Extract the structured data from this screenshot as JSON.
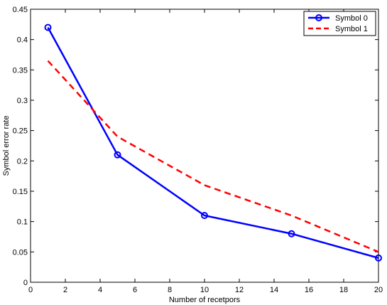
{
  "chart_data": {
    "type": "line",
    "xlabel": "Number of recetpors",
    "ylabel": "Symbol error rate",
    "xlim": [
      0,
      20
    ],
    "ylim": [
      0,
      0.45
    ],
    "xticks": [
      0,
      2,
      4,
      6,
      8,
      10,
      12,
      14,
      16,
      18,
      20
    ],
    "yticks": [
      0,
      0.05,
      0.1,
      0.15,
      0.2,
      0.25,
      0.3,
      0.35,
      0.4,
      0.45
    ],
    "xtick_labels": [
      "0",
      "2",
      "4",
      "6",
      "8",
      "10",
      "12",
      "14",
      "16",
      "18",
      "20"
    ],
    "ytick_labels": [
      "0",
      "0.05",
      "0.1",
      "0.15",
      "0.2",
      "0.25",
      "0.3",
      "0.35",
      "0.4",
      "0.45"
    ],
    "grid": false,
    "legend_position": "top-right",
    "series": [
      {
        "name": "Symbol 0",
        "x": [
          1,
          5,
          10,
          15,
          20
        ],
        "y": [
          0.42,
          0.21,
          0.11,
          0.08,
          0.04
        ],
        "color": "#0000ff",
        "line_style": "solid",
        "marker": "circle"
      },
      {
        "name": "Symbol 1",
        "x": [
          1,
          5,
          10,
          15,
          20
        ],
        "y": [
          0.365,
          0.24,
          0.16,
          0.11,
          0.05
        ],
        "color": "#ff0000",
        "line_style": "dashed",
        "marker": "none"
      }
    ]
  }
}
